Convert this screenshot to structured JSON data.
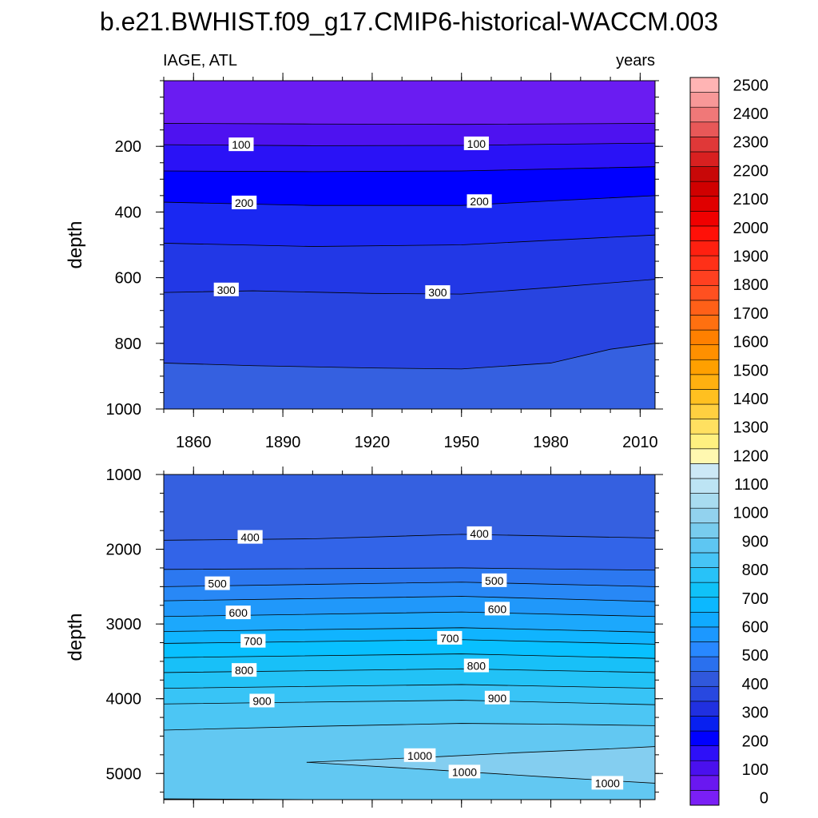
{
  "title": "b.e21.BWHIST.f09_g17.CMIP6-historical-WACCM.003",
  "left_string": "IAGE, ATL",
  "right_string": "years",
  "chart_data": [
    {
      "type": "contour",
      "panel": "upper",
      "xlabel": "",
      "ylabel": "depth",
      "xlim": [
        1850,
        2015
      ],
      "ylim": [
        1000,
        0
      ],
      "xticks": [
        1860,
        1890,
        1920,
        1950,
        1980,
        2010
      ],
      "yticks": [
        200,
        400,
        600,
        800,
        1000
      ],
      "contours": [
        {
          "level": 50,
          "depth": [
            {
              "x": 1850,
              "y": 130
            },
            {
              "x": 1900,
              "y": 132
            },
            {
              "x": 1950,
              "y": 133
            },
            {
              "x": 2015,
              "y": 130
            }
          ]
        },
        {
          "level": 100,
          "depth": [
            {
              "x": 1850,
              "y": 195
            },
            {
              "x": 1900,
              "y": 198
            },
            {
              "x": 1950,
              "y": 197
            },
            {
              "x": 2015,
              "y": 190
            }
          ]
        },
        {
          "level": 150,
          "depth": [
            {
              "x": 1850,
              "y": 275
            },
            {
              "x": 1900,
              "y": 277
            },
            {
              "x": 1950,
              "y": 275
            },
            {
              "x": 2015,
              "y": 262
            }
          ]
        },
        {
          "level": 200,
          "depth": [
            {
              "x": 1850,
              "y": 370
            },
            {
              "x": 1900,
              "y": 380
            },
            {
              "x": 1950,
              "y": 380
            },
            {
              "x": 2015,
              "y": 350
            }
          ]
        },
        {
          "level": 250,
          "depth": [
            {
              "x": 1850,
              "y": 495
            },
            {
              "x": 1900,
              "y": 505
            },
            {
              "x": 1950,
              "y": 500
            },
            {
              "x": 2015,
              "y": 470
            }
          ]
        },
        {
          "level": 300,
          "depth": [
            {
              "x": 1850,
              "y": 645
            },
            {
              "x": 1880,
              "y": 640
            },
            {
              "x": 1920,
              "y": 648
            },
            {
              "x": 1950,
              "y": 650
            },
            {
              "x": 1980,
              "y": 630
            },
            {
              "x": 2015,
              "y": 605
            }
          ]
        },
        {
          "level": 350,
          "depth": [
            {
              "x": 1850,
              "y": 860
            },
            {
              "x": 1880,
              "y": 868
            },
            {
              "x": 1920,
              "y": 875
            },
            {
              "x": 1950,
              "y": 878
            },
            {
              "x": 1980,
              "y": 860
            },
            {
              "x": 2000,
              "y": 818
            },
            {
              "x": 2015,
              "y": 800
            }
          ]
        }
      ],
      "contour_labels": [
        {
          "text": "100",
          "x": 1876,
          "y": 195
        },
        {
          "text": "100",
          "x": 1955,
          "y": 192
        },
        {
          "text": "200",
          "x": 1877,
          "y": 372
        },
        {
          "text": "200",
          "x": 1956,
          "y": 368
        },
        {
          "text": "300",
          "x": 1871,
          "y": 637
        },
        {
          "text": "300",
          "x": 1942,
          "y": 645
        }
      ]
    },
    {
      "type": "contour",
      "panel": "lower",
      "xlabel": "",
      "ylabel": "depth",
      "xlim": [
        1850,
        2015
      ],
      "ylim": [
        5350,
        1000
      ],
      "xticks": [
        1860,
        1890,
        1920,
        1950,
        1980,
        2010
      ],
      "yticks": [
        1000,
        2000,
        3000,
        4000,
        5000
      ],
      "contours": [
        {
          "level": 400,
          "depth": [
            {
              "x": 1850,
              "y": 1880
            },
            {
              "x": 1900,
              "y": 1860
            },
            {
              "x": 1950,
              "y": 1800
            },
            {
              "x": 2015,
              "y": 1850
            }
          ]
        },
        {
          "level": 450,
          "depth": [
            {
              "x": 1850,
              "y": 2270
            },
            {
              "x": 1950,
              "y": 2250
            },
            {
              "x": 2015,
              "y": 2280
            }
          ]
        },
        {
          "level": 500,
          "depth": [
            {
              "x": 1850,
              "y": 2500
            },
            {
              "x": 1950,
              "y": 2440
            },
            {
              "x": 2015,
              "y": 2500
            }
          ]
        },
        {
          "level": 550,
          "depth": [
            {
              "x": 1850,
              "y": 2690
            },
            {
              "x": 1950,
              "y": 2630
            },
            {
              "x": 2015,
              "y": 2700
            }
          ]
        },
        {
          "level": 600,
          "depth": [
            {
              "x": 1850,
              "y": 2900
            },
            {
              "x": 1950,
              "y": 2840
            },
            {
              "x": 2015,
              "y": 2900
            }
          ]
        },
        {
          "level": 650,
          "depth": [
            {
              "x": 1850,
              "y": 3100
            },
            {
              "x": 1950,
              "y": 3050
            },
            {
              "x": 2015,
              "y": 3110
            }
          ]
        },
        {
          "level": 700,
          "depth": [
            {
              "x": 1850,
              "y": 3260
            },
            {
              "x": 1950,
              "y": 3210
            },
            {
              "x": 2015,
              "y": 3270
            }
          ]
        },
        {
          "level": 750,
          "depth": [
            {
              "x": 1850,
              "y": 3450
            },
            {
              "x": 1950,
              "y": 3400
            },
            {
              "x": 2015,
              "y": 3460
            }
          ]
        },
        {
          "level": 800,
          "depth": [
            {
              "x": 1850,
              "y": 3650
            },
            {
              "x": 1950,
              "y": 3600
            },
            {
              "x": 2015,
              "y": 3650
            }
          ]
        },
        {
          "level": 850,
          "depth": [
            {
              "x": 1850,
              "y": 3860
            },
            {
              "x": 1950,
              "y": 3810
            },
            {
              "x": 2015,
              "y": 3860
            }
          ]
        },
        {
          "level": 900,
          "depth": [
            {
              "x": 1850,
              "y": 4070
            },
            {
              "x": 1950,
              "y": 4020
            },
            {
              "x": 2015,
              "y": 4080
            }
          ]
        },
        {
          "level": 950,
          "depth": [
            {
              "x": 1850,
              "y": 4420
            },
            {
              "x": 1900,
              "y": 4370
            },
            {
              "x": 1950,
              "y": 4330
            },
            {
              "x": 1980,
              "y": 4340
            },
            {
              "x": 2015,
              "y": 4360
            }
          ]
        },
        {
          "level": 1000,
          "depth": [
            {
              "x": 1898,
              "y": 4850
            },
            {
              "x": 1940,
              "y": 4780
            },
            {
              "x": 1970,
              "y": 4720
            },
            {
              "x": 2000,
              "y": 4670
            },
            {
              "x": 2015,
              "y": 4640
            }
          ]
        },
        {
          "level": 1000,
          "depth": [
            {
              "x": 1898,
              "y": 4850
            },
            {
              "x": 1940,
              "y": 4950
            },
            {
              "x": 1980,
              "y": 5050
            },
            {
              "x": 2015,
              "y": 5130
            }
          ]
        },
        {
          "level": 1050,
          "depth": [
            {
              "x": 1850,
              "y": 5340
            },
            {
              "x": 1880,
              "y": 5345
            },
            {
              "x": 1900,
              "y": 5350
            }
          ]
        }
      ],
      "contour_labels": [
        {
          "text": "400",
          "x": 1879,
          "y": 1840
        },
        {
          "text": "400",
          "x": 1956,
          "y": 1790
        },
        {
          "text": "500",
          "x": 1868,
          "y": 2460
        },
        {
          "text": "500",
          "x": 1961,
          "y": 2420
        },
        {
          "text": "600",
          "x": 1875,
          "y": 2850
        },
        {
          "text": "600",
          "x": 1962,
          "y": 2800
        },
        {
          "text": "700",
          "x": 1880,
          "y": 3230
        },
        {
          "text": "700",
          "x": 1946,
          "y": 3190
        },
        {
          "text": "800",
          "x": 1877,
          "y": 3620
        },
        {
          "text": "800",
          "x": 1955,
          "y": 3560
        },
        {
          "text": "900",
          "x": 1883,
          "y": 4030
        },
        {
          "text": "900",
          "x": 1962,
          "y": 3990
        },
        {
          "text": "1000",
          "x": 1936,
          "y": 4760
        },
        {
          "text": "1000",
          "x": 1951,
          "y": 4980
        },
        {
          "text": "1000",
          "x": 1999,
          "y": 5130
        }
      ]
    }
  ],
  "colorbar": {
    "labels": [
      "0",
      "100",
      "200",
      "300",
      "400",
      "500",
      "600",
      "700",
      "800",
      "900",
      "1000",
      "1100",
      "1200",
      "1300",
      "1400",
      "1500",
      "1600",
      "1700",
      "1800",
      "1900",
      "2000",
      "2100",
      "2200",
      "2300",
      "2400",
      "2500"
    ],
    "colors": [
      "#7a1ff5",
      "#6a18f0",
      "#4a10ee",
      "#2e10f8",
      "#0000ff",
      "#0820f0",
      "#2030e0",
      "#2848e0",
      "#3058dc",
      "#2a70ee",
      "#2888ff",
      "#1c98ff",
      "#10aaff",
      "#0cb8ff",
      "#10c2f8",
      "#28c2f8",
      "#46c4f6",
      "#5ec6f2",
      "#78ccee",
      "#92d2ee",
      "#a8dcf0",
      "#bde4f4",
      "#cce8f6",
      "#fff8b0",
      "#fff080",
      "#ffe060",
      "#ffd040",
      "#ffc020",
      "#ffb010",
      "#ffa000",
      "#ff9000",
      "#ff8000",
      "#ff7010",
      "#ff6018",
      "#ff5020",
      "#ff4020",
      "#ff3018",
      "#ff2010",
      "#ff1008",
      "#f00000",
      "#e00000",
      "#d00000",
      "#c80808",
      "#d82020",
      "#e03838",
      "#e85858",
      "#f07878",
      "#f89898",
      "#ffb4b4"
    ]
  }
}
